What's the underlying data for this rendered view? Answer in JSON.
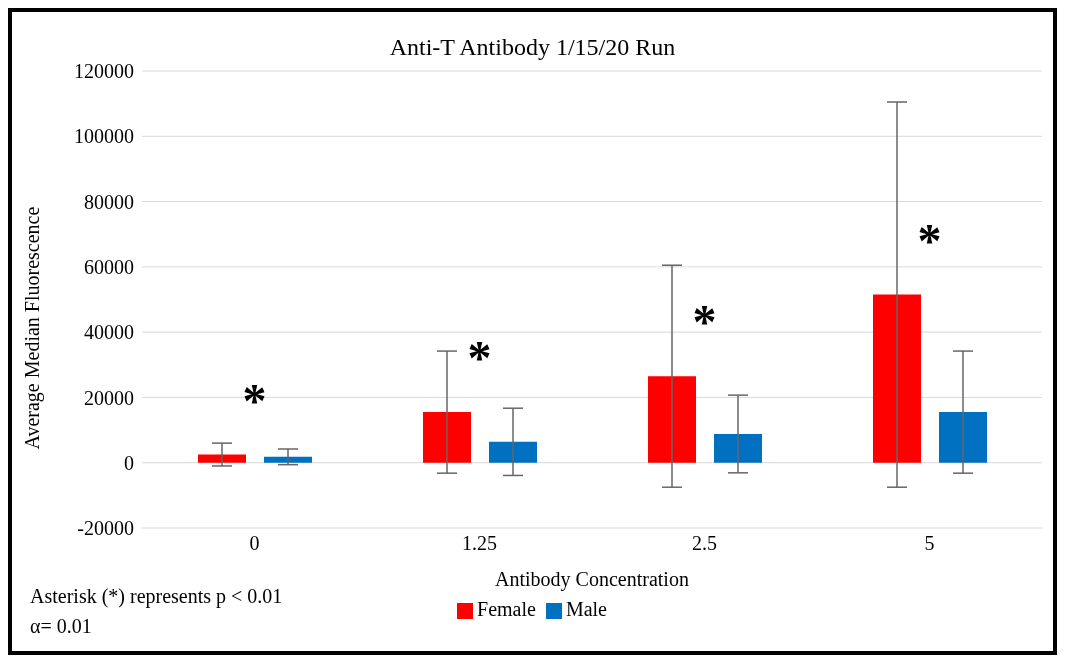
{
  "chart_data": {
    "type": "bar",
    "title": "Anti-T Antibody 1/15/20 Run",
    "xlabel": "Antibody Concentration",
    "ylabel": "Average Median Fluorescence",
    "categories": [
      "0",
      "1.25",
      "2.5",
      "5"
    ],
    "series": [
      {
        "name": "Female",
        "color": "#ff0000",
        "values": [
          2500,
          15500,
          26500,
          51500
        ],
        "errors": [
          3500,
          18700,
          34000,
          59000
        ]
      },
      {
        "name": "Male",
        "color": "#0070c0",
        "values": [
          1800,
          6400,
          8800,
          15500
        ],
        "errors": [
          2400,
          10300,
          11900,
          18700
        ]
      }
    ],
    "ylim": [
      -20000,
      120000
    ],
    "yticks": [
      -20000,
      0,
      20000,
      40000,
      60000,
      80000,
      100000,
      120000
    ],
    "grid": "y",
    "legend": "bottom",
    "annotations": [
      "*",
      "*",
      "*",
      "*",
      "Asterisk (*) represents p < 0.01",
      "α= 0.01"
    ]
  }
}
